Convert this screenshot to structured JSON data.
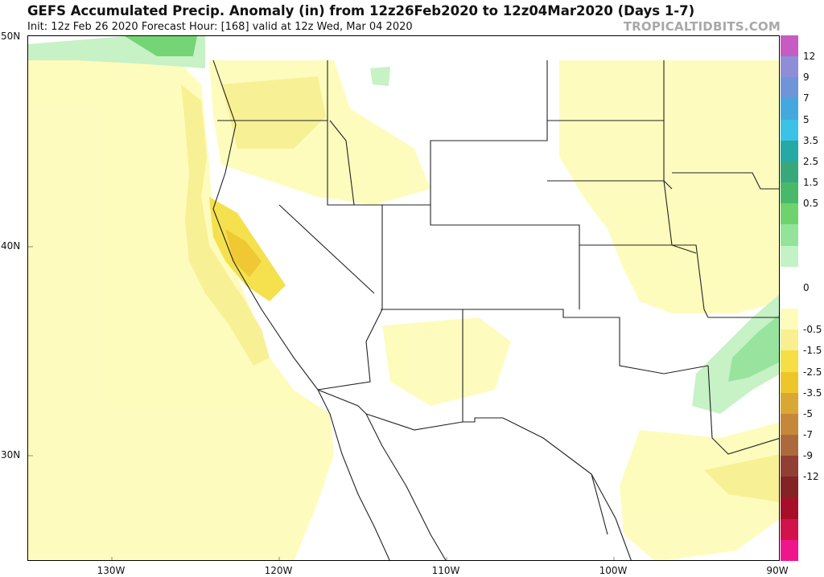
{
  "header": {
    "title": "GEFS Accumulated Precip. Anomaly (in) from 12z26Feb2020 to 12z04Mar2020 (Days 1-7)",
    "subtitle": "Init: 12z Feb 26 2020   Forecast Hour: [168]   valid at 12z Wed, Mar 04 2020",
    "brand": "TROPICALTIDBITS.COM"
  },
  "axes": {
    "lat_labels": [
      "50N",
      "40N",
      "30N"
    ],
    "lon_labels": [
      "130W",
      "120W",
      "110W",
      "100W",
      "90W"
    ]
  },
  "colorbar": {
    "labels": [
      "12",
      "9",
      "7",
      "5",
      "3.5",
      "2.5",
      "1.5",
      "0.5",
      "0",
      "-0.5",
      "-1.5",
      "-2.5",
      "-3.5",
      "-5",
      "-7",
      "-9",
      "-12"
    ],
    "colors": [
      "#c65cc3",
      "#8e8ed8",
      "#6f95d9",
      "#44a8df",
      "#3bc2e6",
      "#24a9a5",
      "#38a87c",
      "#48b968",
      "#6ed36e",
      "#93e39a",
      "#c3f2c4",
      "#ffffff",
      "#ffffff",
      "#fdfcba",
      "#f8f090",
      "#f5df45",
      "#efc62a",
      "#d9a733",
      "#c5873a",
      "#ac6a3c",
      "#913e35",
      "#842323",
      "#a70f29",
      "#d1124b",
      "#f0158c"
    ]
  },
  "map": {
    "legend_meaning": "precipitation anomaly shading over western and central US"
  }
}
